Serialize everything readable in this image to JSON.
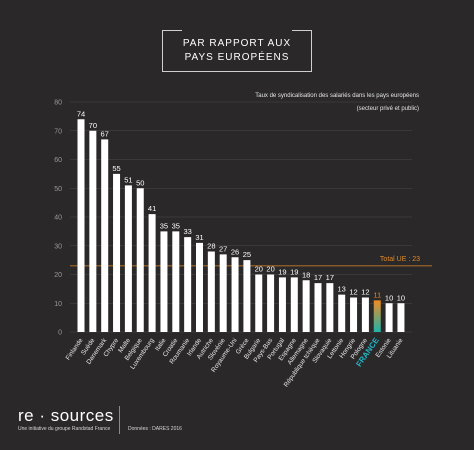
{
  "header": {
    "title_line1": "PAR RAPPORT AUX",
    "title_line2": "PAYS EUROPÉENS",
    "note_line1": "Taux de syndicalisation des salariés dans les pays européens",
    "note_line2": "(secteur privé et public)"
  },
  "footer": {
    "logo": "re · sources",
    "tagline": "Une initiative du groupe Randstad France",
    "source": "Données : DARES 2016"
  },
  "colors": {
    "background": "#2a2828",
    "bar": "#ffffff",
    "grid": "#4a4848",
    "average_line": "#e08a2a",
    "france_bar_top": "#f08a24",
    "france_bar_bottom": "#1fb3a8",
    "france_label": "#22b7c8"
  },
  "chart_data": {
    "type": "bar",
    "categories": [
      "Finlande",
      "Suède",
      "Danemark",
      "Chypre",
      "Malte",
      "Belgique",
      "Luxembourg",
      "Italie",
      "Croatie",
      "Roumanie",
      "Irlande",
      "Autriche",
      "Slovénie",
      "Royaume-Uni",
      "Grèce",
      "Bulgarie",
      "Pays-Bas",
      "Portugal",
      "Espagne",
      "Allemagne",
      "République tchèque",
      "Slovaquie",
      "Lettonie",
      "Hongrie",
      "Pologne",
      "FRANCE",
      "Estonie",
      "Lituanie"
    ],
    "values": [
      74,
      70,
      67,
      55,
      51,
      50,
      41,
      35,
      35,
      33,
      31,
      28,
      27,
      26,
      25,
      20,
      20,
      19,
      19,
      18,
      17,
      17,
      13,
      12,
      12,
      11,
      10,
      10
    ],
    "highlight": "FRANCE",
    "yticks": [
      0,
      10,
      20,
      30,
      40,
      50,
      60,
      70,
      80
    ],
    "ylim": [
      0,
      80
    ],
    "reference_line": {
      "label": "Total UE : 23",
      "value": 23
    }
  }
}
